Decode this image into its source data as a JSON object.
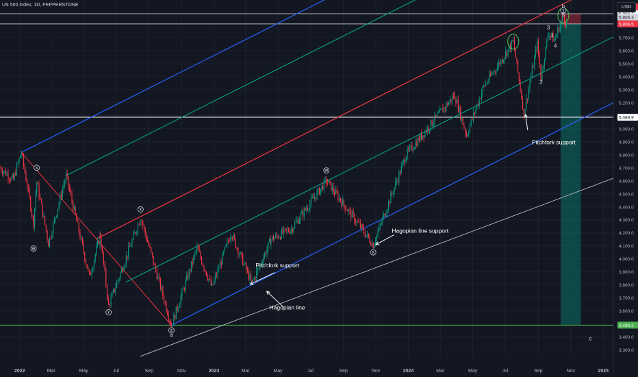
{
  "header": {
    "title": "US 500 Index, 1D, PEPPERSTONE",
    "currency_button": "USD"
  },
  "chart_data": {
    "type": "candlestick",
    "price_axis": {
      "ylim": [
        3250,
        5990
      ],
      "ticks": [
        5700,
        5600,
        5500,
        5400,
        5300,
        5200,
        5100,
        5000,
        4900,
        4800,
        4700,
        4600,
        4500,
        4400,
        4300,
        4200,
        4100,
        4000,
        3900,
        3800,
        3700,
        3600,
        3400,
        3300
      ],
      "tick_labels": [
        "5,700.0",
        "5,600.0",
        "5,500.0",
        "5,400.0",
        "5,300.0",
        "5,200.0",
        "5,100.0",
        "5,000.0",
        "4,900.0",
        "4,800.0",
        "4,700.0",
        "4,600.0",
        "4,500.0",
        "4,400.0",
        "4,300.0",
        "4,200.0",
        "4,100.0",
        "4,000.0",
        "3,900.0",
        "3,800.0",
        "3,700.0",
        "3,600.0",
        "3,400.0",
        "3,300.0"
      ]
    },
    "time_axis": {
      "xlim": [
        "2021-11-25",
        "2025-01-20"
      ],
      "ticks": [
        {
          "date": "2022-01-01",
          "label": "2022",
          "bold": true
        },
        {
          "date": "2022-03-01",
          "label": "Mar",
          "bold": false
        },
        {
          "date": "2022-05-01",
          "label": "May",
          "bold": false
        },
        {
          "date": "2022-07-01",
          "label": "Jul",
          "bold": false
        },
        {
          "date": "2022-09-01",
          "label": "Sep",
          "bold": false
        },
        {
          "date": "2022-11-01",
          "label": "Nov",
          "bold": false
        },
        {
          "date": "2023-01-01",
          "label": "2023",
          "bold": true
        },
        {
          "date": "2023-03-01",
          "label": "Mar",
          "bold": false
        },
        {
          "date": "2023-05-01",
          "label": "May",
          "bold": false
        },
        {
          "date": "2023-07-01",
          "label": "Jul",
          "bold": false
        },
        {
          "date": "2023-09-01",
          "label": "Sep",
          "bold": false
        },
        {
          "date": "2023-11-01",
          "label": "Nov",
          "bold": false
        },
        {
          "date": "2024-01-01",
          "label": "2024",
          "bold": true
        },
        {
          "date": "2024-03-01",
          "label": "Mar",
          "bold": false
        },
        {
          "date": "2024-05-01",
          "label": "May",
          "bold": false
        },
        {
          "date": "2024-07-01",
          "label": "Jul",
          "bold": false
        },
        {
          "date": "2024-09-01",
          "label": "Sep",
          "bold": false
        },
        {
          "date": "2024-11-01",
          "label": "Nov",
          "bold": false
        },
        {
          "date": "2025-01-01",
          "label": "2025",
          "bold": true
        }
      ]
    },
    "price_path": [
      [
        "2021-11-25",
        4700
      ],
      [
        "2021-12-20",
        4610
      ],
      [
        "2022-01-04",
        4820
      ],
      [
        "2022-01-27",
        4280
      ],
      [
        "2022-02-02",
        4590
      ],
      [
        "2022-02-24",
        4120
      ],
      [
        "2022-03-29",
        4640
      ],
      [
        "2022-05-12",
        3860
      ],
      [
        "2022-06-01",
        4180
      ],
      [
        "2022-06-17",
        3640
      ],
      [
        "2022-08-16",
        4320
      ],
      [
        "2022-10-13",
        3490
      ],
      [
        "2022-11-30",
        4080
      ],
      [
        "2022-12-28",
        3780
      ],
      [
        "2023-02-02",
        4200
      ],
      [
        "2023-03-13",
        3810
      ],
      [
        "2023-04-18",
        4150
      ],
      [
        "2023-05-26",
        4230
      ],
      [
        "2023-07-31",
        4600
      ],
      [
        "2023-10-27",
        4110
      ],
      [
        "2023-12-28",
        4800
      ],
      [
        "2024-02-15",
        5050
      ],
      [
        "2024-03-28",
        5260
      ],
      [
        "2024-04-19",
        4950
      ],
      [
        "2024-05-21",
        5320
      ],
      [
        "2024-07-16",
        5670
      ],
      [
        "2024-08-05",
        5120
      ],
      [
        "2024-08-30",
        5650
      ],
      [
        "2024-09-06",
        5400
      ],
      [
        "2024-09-20",
        5740
      ],
      [
        "2024-10-01",
        5680
      ],
      [
        "2024-10-18",
        5870
      ],
      [
        "2024-10-24",
        5806
      ]
    ],
    "horizontal_levels": [
      {
        "price": 5884.7,
        "color": "#b2b5be"
      },
      {
        "price": 5806.5,
        "color": "#b2b5be"
      },
      {
        "price": 5088.9,
        "color": "#ffffff"
      },
      {
        "price": 3490.2,
        "color": "#4caf50"
      }
    ],
    "price_labels": [
      {
        "price": 5884.7,
        "text": "5,884.7",
        "bg": "#f23645",
        "fg": "#ffffff"
      },
      {
        "price": 5884.7,
        "text": "5,884.7",
        "bg": "#ffffff",
        "fg": "#131722"
      },
      {
        "price": 5806.3,
        "text": "5,806.3",
        "bg": "#d1d4dc",
        "fg": "#131722"
      },
      {
        "price": 5806.5,
        "text": "5,806.5",
        "bg": "#f23645",
        "fg": "#ffffff"
      },
      {
        "price": 5088.9,
        "text": "5,088.9",
        "bg": "#ffffff",
        "fg": "#131722"
      },
      {
        "price": 3490.2,
        "text": "3,490.2",
        "bg": "#4caf50",
        "fg": "#ffffff"
      }
    ],
    "pitchfork": {
      "pivot_a": [
        "2022-01-04",
        4818
      ],
      "pivot_b": [
        "2022-10-13",
        3490
      ],
      "lines": [
        {
          "name": "upper",
          "color": "#2962ff",
          "anchor": [
            "2022-01-04",
            4818
          ]
        },
        {
          "name": "upper-mid",
          "color": "#089981",
          "anchor": [
            "2022-03-29",
            4640
          ]
        },
        {
          "name": "median",
          "color": "#f23645",
          "anchor": [
            "2022-05-25",
            4154
          ]
        },
        {
          "name": "lower-mid",
          "color": "#089981",
          "anchor": [
            "2022-07-20",
            3822
          ]
        },
        {
          "name": "lower",
          "color": "#2962ff",
          "anchor": [
            "2022-10-13",
            3490
          ]
        }
      ],
      "slope_per_day": 2.06
    },
    "hagopian_line": {
      "from": [
        "2022-08-15",
        3250
      ],
      "to": [
        "2025-01-20",
        4620
      ],
      "color": "#b2b5be"
    },
    "trade_box": {
      "start": "2024-10-13",
      "end": "2024-11-20",
      "entry": 5806.5,
      "stop": 5884.7,
      "target": 3490.2
    },
    "circles": [
      {
        "date": "2024-07-16",
        "price": 5670
      },
      {
        "date": "2024-10-18",
        "price": 5870
      }
    ],
    "wave_labels": [
      {
        "text": "X",
        "date": "2022-02-02",
        "price": 4700,
        "circled": true
      },
      {
        "text": "W",
        "date": "2022-01-27",
        "price": 4080,
        "circled": true
      },
      {
        "text": "Y",
        "date": "2022-06-17",
        "price": 3590,
        "circled": true
      },
      {
        "text": "X",
        "date": "2022-08-16",
        "price": 4380,
        "circled": true
      },
      {
        "text": "Z",
        "date": "2022-10-13",
        "price": 3450,
        "circled": true
      },
      {
        "text": "a",
        "date": "2022-10-13",
        "price": 3415,
        "circled": false
      },
      {
        "text": "W",
        "date": "2023-07-31",
        "price": 4680,
        "circled": true
      },
      {
        "text": "X",
        "date": "2023-10-27",
        "price": 4050,
        "circled": true
      },
      {
        "text": "Y",
        "date": "2024-10-18",
        "price": 5910,
        "circled": true
      },
      {
        "text": "b",
        "date": "2024-10-18",
        "price": 5945,
        "circled": false
      },
      {
        "text": "5",
        "date": "2024-10-18",
        "price": 5880,
        "circled": false
      },
      {
        "text": "3",
        "date": "2024-09-20",
        "price": 5780,
        "circled": false
      },
      {
        "text": "1",
        "date": "2024-09-27",
        "price": 5720,
        "circled": false
      },
      {
        "text": "4",
        "date": "2024-10-03",
        "price": 5640,
        "circled": false
      },
      {
        "text": "2",
        "date": "2024-09-06",
        "price": 5360,
        "circled": false
      },
      {
        "text": "c",
        "date": "2024-12-08",
        "price": 3390,
        "circled": false
      }
    ],
    "annotations": [
      {
        "text": "Pitchfork support",
        "date": "2024-08-20",
        "price": 4880,
        "arrow_to": [
          "2024-08-08",
          5110
        ],
        "arrow_from": [
          "2024-08-12",
          4990
        ]
      },
      {
        "text": "Hagopian line support",
        "date": "2023-12-01",
        "price": 4200,
        "arrow_to": [
          "2023-11-01",
          4110
        ],
        "arrow_from": [
          "2023-12-05",
          4185
        ]
      },
      {
        "text": "Pitchfork support",
        "date": "2023-03-20",
        "price": 3935,
        "arrow_to": [
          "2023-03-10",
          3805
        ],
        "arrow_from": [
          "2023-04-25",
          3895
        ]
      },
      {
        "text": "Hagopian line",
        "date": "2023-04-15",
        "price": 3610,
        "arrow_to": [
          "2023-04-10",
          3750
        ],
        "arrow_from": [
          "2023-05-10",
          3635
        ]
      }
    ],
    "watermark_glyph": "⚡"
  }
}
